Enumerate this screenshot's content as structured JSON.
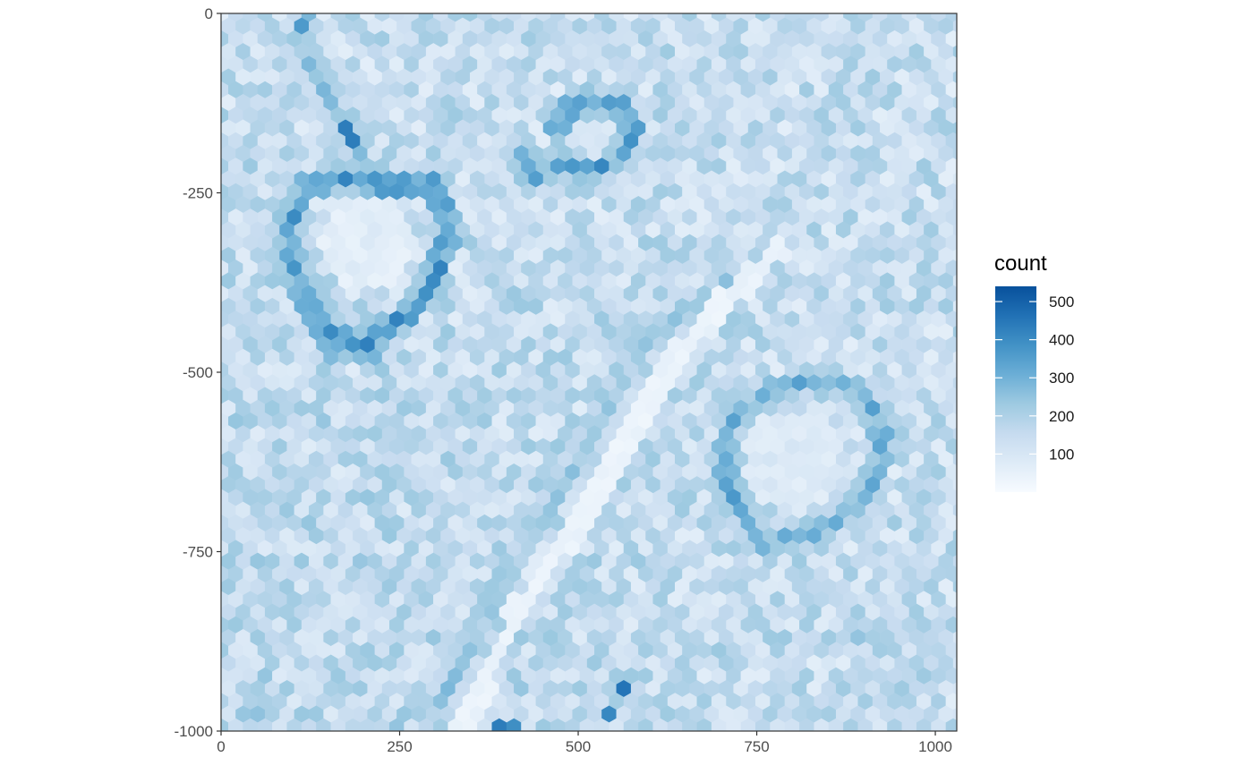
{
  "chart_data": {
    "type": "heatmap",
    "subtype": "hexbin",
    "title": "",
    "xlabel": "",
    "ylabel": "",
    "xlim": [
      0,
      1030
    ],
    "ylim": [
      -1000,
      0
    ],
    "x_ticks": [
      0,
      250,
      500,
      750,
      1000
    ],
    "y_ticks": [
      0,
      -250,
      -500,
      -750,
      -1000
    ],
    "x_tick_labels": [
      "0",
      "250",
      "500",
      "750",
      "1000"
    ],
    "y_tick_labels": [
      "0",
      "-250",
      "-500",
      "-750",
      "-1000"
    ],
    "grid": false,
    "hex_width": 20.5,
    "background_count": [
      60,
      230
    ],
    "legend": {
      "title": "count",
      "position": "right",
      "min": 0,
      "max": 540,
      "breaks": [
        100,
        200,
        300,
        400,
        500
      ],
      "break_labels": [
        "100",
        "200",
        "300",
        "400",
        "500"
      ],
      "colors": [
        "#f7fbff",
        "#deebf7",
        "#c6dbef",
        "#9ecae1",
        "#6baed6",
        "#4292c6",
        "#2171b5",
        "#08519c"
      ]
    },
    "features": {
      "heart_outline": {
        "center": [
          205,
          -320
        ],
        "count": 430,
        "points": [
          [
            135,
            -440
          ],
          [
            105,
            -380
          ],
          [
            95,
            -300
          ],
          [
            120,
            -240
          ],
          [
            170,
            -230
          ],
          [
            220,
            -240
          ],
          [
            260,
            -240
          ],
          [
            300,
            -240
          ],
          [
            320,
            -300
          ],
          [
            300,
            -370
          ],
          [
            260,
            -420
          ],
          [
            210,
            -460
          ],
          [
            160,
            -470
          ],
          [
            140,
            -440
          ],
          [
            205,
            -470
          ]
        ],
        "interior_count": 40
      },
      "left_stem": {
        "count": 300,
        "points": [
          [
            120,
            0
          ],
          [
            120,
            -60
          ],
          [
            150,
            -110
          ],
          [
            180,
            -180
          ],
          [
            210,
            -230
          ]
        ]
      },
      "upper_right_stroke": {
        "count": 250,
        "points": [
          [
            300,
            -200
          ],
          [
            305,
            -240
          ],
          [
            310,
            -260
          ]
        ]
      },
      "small_loop": {
        "center": [
          520,
          -170
        ],
        "count": 380,
        "points": [
          [
            470,
            -160
          ],
          [
            490,
            -130
          ],
          [
            520,
            -120
          ],
          [
            560,
            -130
          ],
          [
            580,
            -160
          ],
          [
            560,
            -200
          ],
          [
            520,
            -220
          ],
          [
            480,
            -210
          ],
          [
            440,
            -230
          ],
          [
            420,
            -200
          ]
        ],
        "interior_count": 60
      },
      "diagonal_gap": {
        "count": 25,
        "points": [
          [
            330,
            -1000
          ],
          [
            420,
            -830
          ],
          [
            490,
            -720
          ],
          [
            560,
            -600
          ],
          [
            620,
            -500
          ],
          [
            690,
            -420
          ],
          [
            780,
            -330
          ]
        ]
      },
      "diagonal_stroke": {
        "count": 280,
        "points": [
          [
            310,
            -960
          ],
          [
            350,
            -870
          ],
          [
            400,
            -780
          ],
          [
            440,
            -720
          ],
          [
            490,
            -640
          ],
          [
            530,
            -560
          ],
          [
            580,
            -470
          ],
          [
            640,
            -420
          ],
          [
            700,
            -380
          ],
          [
            760,
            -340
          ]
        ]
      },
      "right_loop": {
        "center": [
          800,
          -620
        ],
        "count": 360,
        "points": [
          [
            750,
            -720
          ],
          [
            720,
            -680
          ],
          [
            700,
            -620
          ],
          [
            720,
            -560
          ],
          [
            780,
            -520
          ],
          [
            850,
            -510
          ],
          [
            900,
            -530
          ],
          [
            930,
            -600
          ],
          [
            910,
            -660
          ],
          [
            870,
            -700
          ],
          [
            830,
            -720
          ],
          [
            760,
            -740
          ]
        ],
        "interior_count": 60
      },
      "lower_blob": {
        "count": 240,
        "points": [
          [
            820,
            -880
          ],
          [
            880,
            -870
          ],
          [
            950,
            -860
          ],
          [
            1000,
            -850
          ],
          [
            1010,
            -920
          ],
          [
            960,
            -940
          ],
          [
            900,
            -920
          ]
        ]
      },
      "dark_spots": {
        "count": 430,
        "points": [
          [
            570,
            -940
          ],
          [
            540,
            -980
          ],
          [
            120,
            -20
          ],
          [
            180,
            -170
          ],
          [
            400,
            -1000
          ]
        ]
      }
    }
  }
}
